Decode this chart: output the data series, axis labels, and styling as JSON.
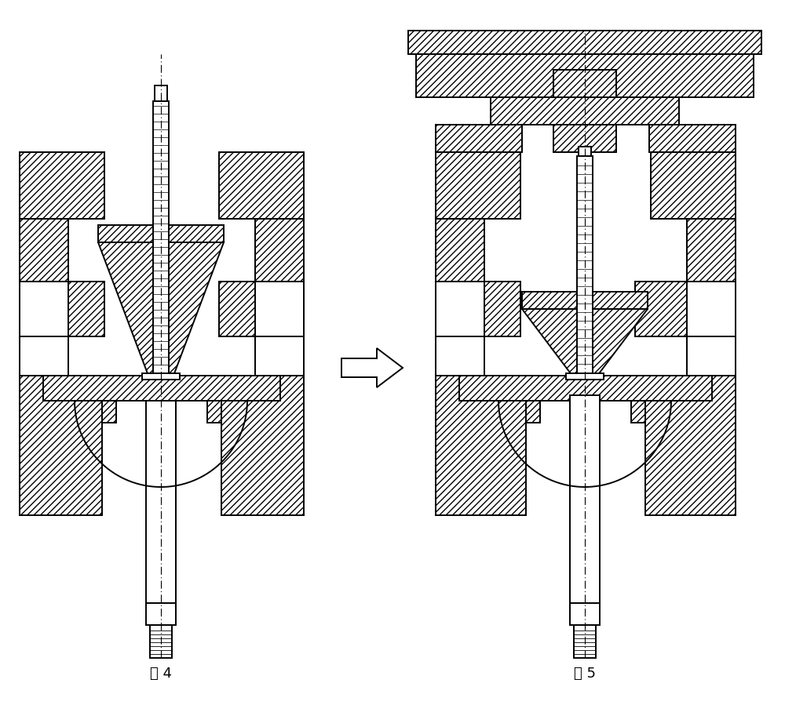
{
  "fig_width": 10.0,
  "fig_height": 8.99,
  "bg_color": "#ffffff",
  "lc": "#000000",
  "label1": "图 4",
  "label2": "图 5",
  "label_fs": 13,
  "hatch": "////"
}
